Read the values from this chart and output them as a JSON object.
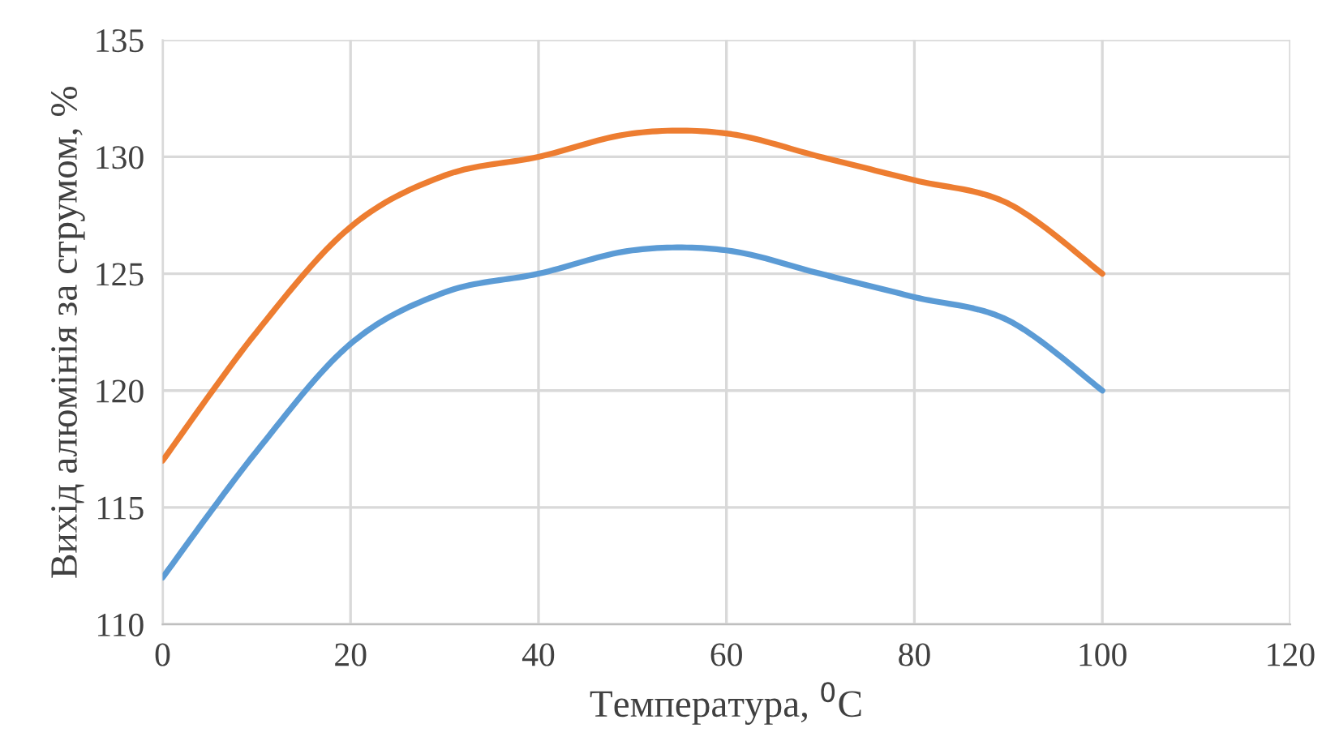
{
  "chart_data": {
    "type": "line",
    "xlabel": "Температура, $^{0}$C",
    "ylabel": "Вихід алюмінія за струмом, %",
    "x": [
      0,
      10,
      20,
      30,
      40,
      50,
      60,
      70,
      80,
      90,
      100
    ],
    "series": [
      {
        "color": "#5b9bd5",
        "values": [
          112,
          117.4,
          122,
          124.2,
          125,
          126,
          126,
          125,
          124,
          123,
          120
        ]
      },
      {
        "color": "#ed7d31",
        "values": [
          117,
          122.5,
          127,
          129.2,
          130,
          131,
          131,
          130,
          129,
          128,
          125
        ]
      }
    ],
    "xlim": [
      0,
      120
    ],
    "ylim": [
      110,
      135
    ],
    "xticks": [
      0,
      20,
      40,
      60,
      80,
      100,
      120
    ],
    "yticks": [
      110,
      115,
      120,
      125,
      130,
      135
    ],
    "grid": true,
    "marker": "none",
    "line_style": "solid"
  }
}
